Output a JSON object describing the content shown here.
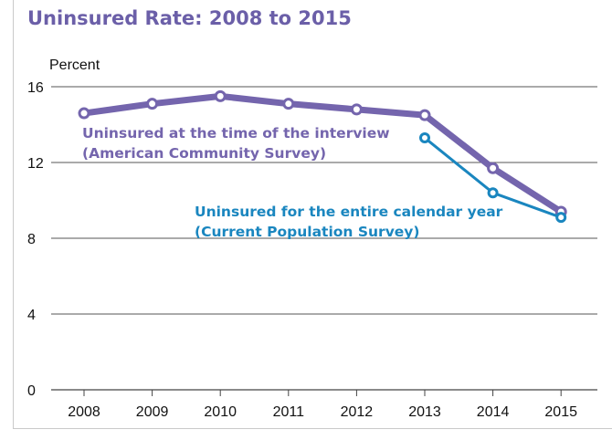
{
  "chart_data": {
    "type": "line",
    "title": "Uninsured Rate: 2008 to 2015",
    "ylabel": "Percent",
    "xlabel": "",
    "categories": [
      "2008",
      "2009",
      "2010",
      "2011",
      "2012",
      "2013",
      "2014",
      "2015"
    ],
    "ylim": [
      0,
      16
    ],
    "yticks": [
      "0",
      "4",
      "8",
      "12",
      "16"
    ],
    "grid": true,
    "series": [
      {
        "name_lines": [
          "Uninsured at the time of the interview",
          "(American Community Survey)"
        ],
        "color": "#7465ad",
        "values": [
          14.6,
          15.1,
          15.5,
          15.1,
          14.8,
          14.5,
          11.7,
          9.4
        ]
      },
      {
        "name_lines": [
          "Uninsured for the entire calendar year",
          "(Current Population Survey)"
        ],
        "color": "#1a86bf",
        "values": [
          null,
          null,
          null,
          null,
          null,
          13.3,
          10.4,
          9.1
        ]
      }
    ]
  }
}
